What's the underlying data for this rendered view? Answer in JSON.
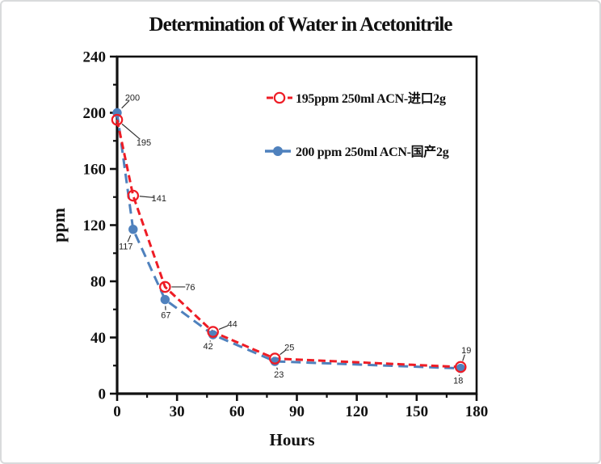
{
  "chart_data": {
    "type": "line",
    "title": "Determination of Water in Acetonitrile",
    "xlabel": "Hours",
    "ylabel": "ppm",
    "xlim": [
      0,
      180
    ],
    "ylim": [
      0,
      240
    ],
    "x_major_ticks": [
      0,
      30,
      60,
      90,
      120,
      150,
      180
    ],
    "x_minor_step": 15,
    "y_major_ticks": [
      0,
      40,
      80,
      120,
      160,
      200,
      240
    ],
    "y_minor_step": 20,
    "grid": false,
    "legend_position": "inside-top-right",
    "x": [
      0,
      8,
      24,
      48,
      79,
      172
    ],
    "series": [
      {
        "name": "195ppm  250ml ACN-进口2g",
        "color": "#ee1c25",
        "line_style": "dashed",
        "marker": "open-circle",
        "values": [
          195,
          141,
          76,
          44,
          25,
          19
        ],
        "point_labels": [
          "195",
          "141",
          "76",
          "44",
          "25",
          "19"
        ]
      },
      {
        "name": "200 ppm 250ml ACN-国产2g",
        "color": "#4f81bd",
        "line_style": "dashed",
        "marker": "filled-circle",
        "values": [
          200,
          117,
          67,
          42,
          23,
          18
        ],
        "point_labels": [
          "200",
          "117",
          "67",
          "42",
          "23",
          "18"
        ]
      }
    ],
    "axis_color": "#111111"
  }
}
